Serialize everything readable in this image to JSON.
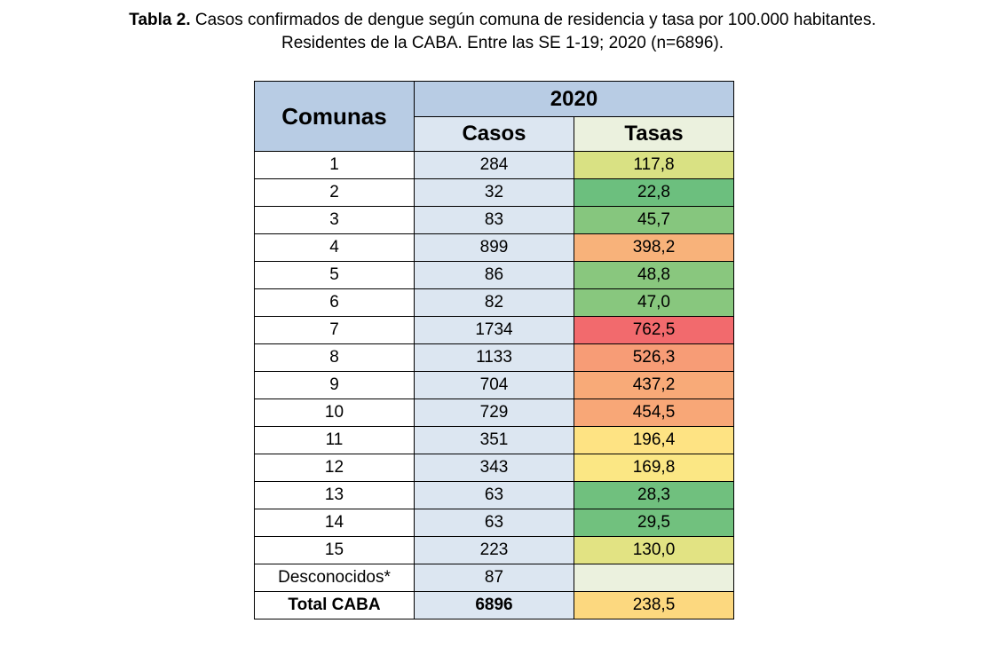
{
  "title": {
    "label": "Tabla 2.",
    "text_line1": "Casos confirmados de dengue según comuna de residencia y tasa por 100.000 habitantes.",
    "text_line2": "Residentes de la CABA. Entre las SE 1-19; 2020 (n=6896)."
  },
  "table": {
    "header": {
      "comunas": "Comunas",
      "year": "2020",
      "casos": "Casos",
      "tasas": "Tasas"
    },
    "rows": [
      {
        "comuna": "1",
        "casos": "284",
        "tasa": "117,8",
        "color": "#d9e183"
      },
      {
        "comuna": "2",
        "casos": "32",
        "tasa": "22,8",
        "color": "#6cbf7e"
      },
      {
        "comuna": "3",
        "casos": "83",
        "tasa": "45,7",
        "color": "#86c67e"
      },
      {
        "comuna": "4",
        "casos": "899",
        "tasa": "398,2",
        "color": "#f8b27a"
      },
      {
        "comuna": "5",
        "casos": "86",
        "tasa": "48,8",
        "color": "#89c77e"
      },
      {
        "comuna": "6",
        "casos": "82",
        "tasa": "47,0",
        "color": "#88c77e"
      },
      {
        "comuna": "7",
        "casos": "1734",
        "tasa": "762,5",
        "color": "#f26a6d"
      },
      {
        "comuna": "8",
        "casos": "1133",
        "tasa": "526,3",
        "color": "#f79c76"
      },
      {
        "comuna": "9",
        "casos": "704",
        "tasa": "437,2",
        "color": "#f8aa78"
      },
      {
        "comuna": "10",
        "casos": "729",
        "tasa": "454,5",
        "color": "#f8a777"
      },
      {
        "comuna": "11",
        "casos": "351",
        "tasa": "196,4",
        "color": "#fee383"
      },
      {
        "comuna": "12",
        "casos": "343",
        "tasa": "169,8",
        "color": "#fbe784"
      },
      {
        "comuna": "13",
        "casos": "63",
        "tasa": "28,3",
        "color": "#70c07e"
      },
      {
        "comuna": "14",
        "casos": "63",
        "tasa": "29,5",
        "color": "#71c17e"
      },
      {
        "comuna": "15",
        "casos": "223",
        "tasa": "130,0",
        "color": "#e2e383"
      },
      {
        "comuna": "Desconocidos*",
        "casos": "87",
        "tasa": "",
        "color": "#ebf1de"
      }
    ],
    "total": {
      "comuna": "Total CABA",
      "casos": "6896",
      "tasa": "238,5",
      "color": "#fcd87f"
    }
  }
}
